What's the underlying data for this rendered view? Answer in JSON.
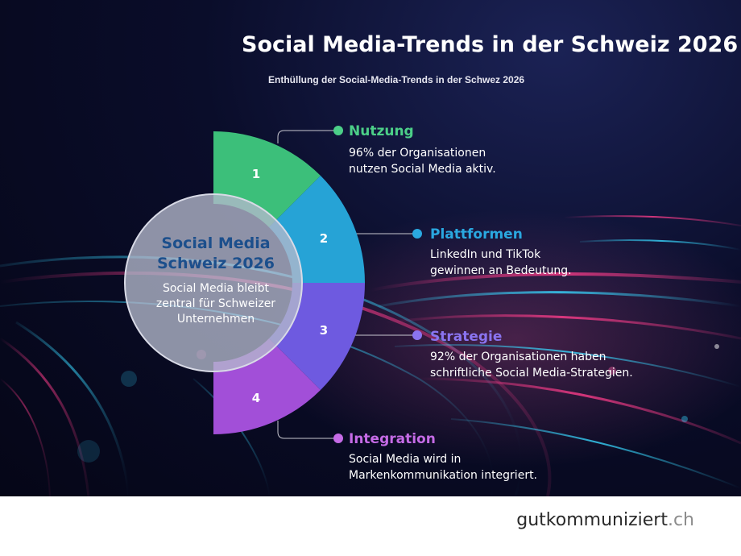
{
  "title": "Social Media-Trends in der Schweiz 2026",
  "subtitle": "Enthüllung der Social-Media-Trends in der Schwez 2026",
  "center": {
    "title_line1": "Social Media",
    "title_line2": "Schweiz 2026",
    "text_line1": "Social Media bleibt",
    "text_line2": "zentral für Schweizer",
    "text_line3": "Unternehmen"
  },
  "segments": [
    {
      "number": "1",
      "color": "#3cbf7a"
    },
    {
      "number": "2",
      "color": "#26a3d6"
    },
    {
      "number": "3",
      "color": "#6e5ae0"
    },
    {
      "number": "4",
      "color": "#a24fd8"
    }
  ],
  "items": [
    {
      "title": "Nutzung",
      "color": "#4ccf88",
      "line1": "96% der Organisationen",
      "line2": "nutzen Social Media aktiv."
    },
    {
      "title": "Plattformen",
      "color": "#2aa8e0",
      "line1": "LinkedIn und TikTok",
      "line2": "gewinnen an Bedeutung."
    },
    {
      "title": "Strategie",
      "color": "#8a74f0",
      "line1": "92% der Organisationen haben",
      "line2": "schriftliche Social Media-Strategien."
    },
    {
      "title": "Integration",
      "color": "#c56be6",
      "line1": "Social Media wird in",
      "line2": "Markenkommunikation integriert."
    }
  ],
  "footer": {
    "brand_name": "gutkommuniziert",
    "brand_tld": ".ch"
  }
}
